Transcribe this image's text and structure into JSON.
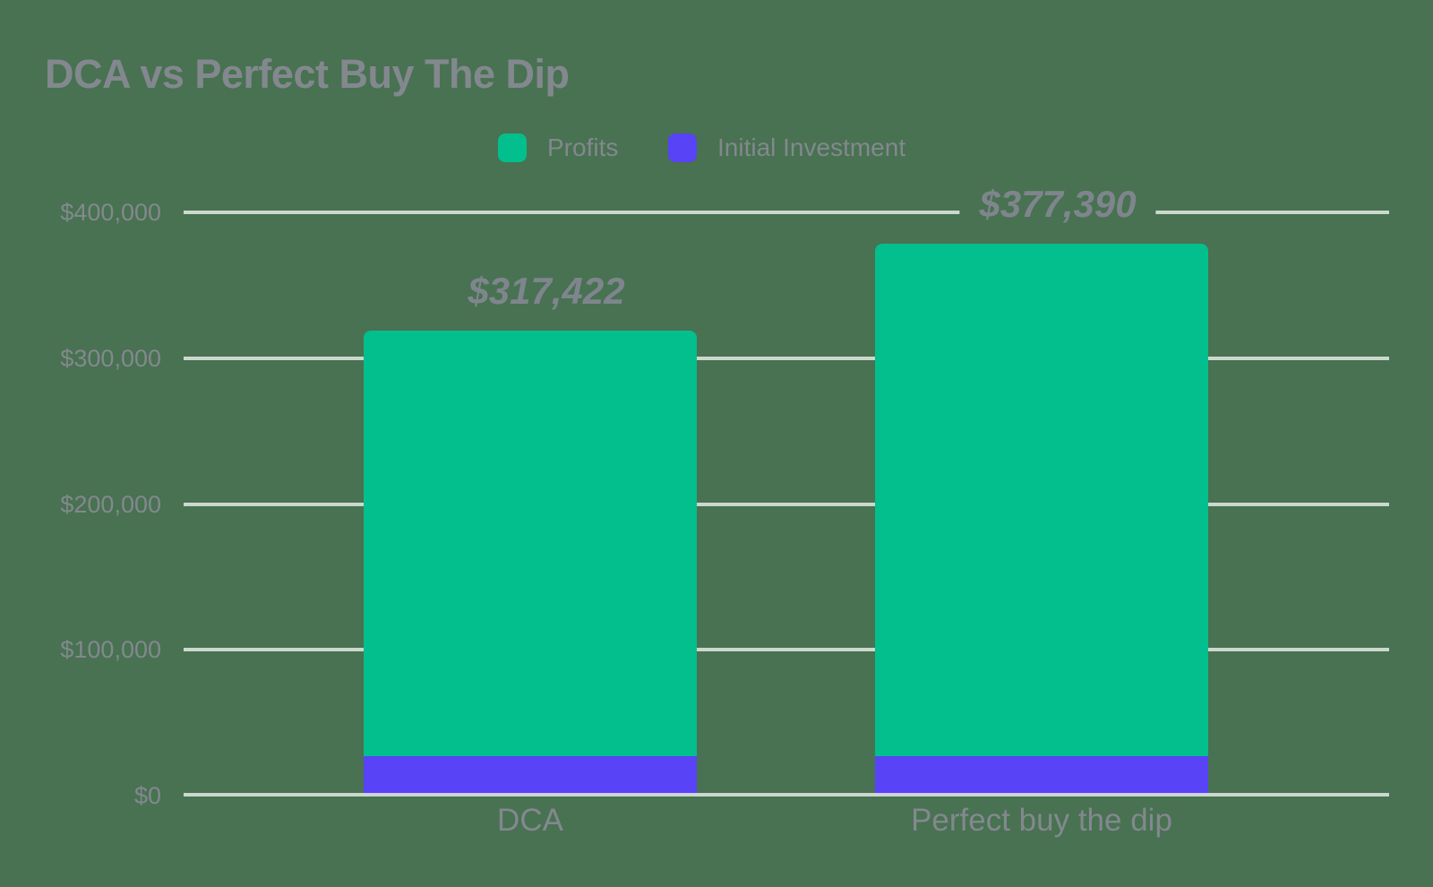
{
  "title": "DCA vs Perfect Buy The Dip",
  "colors": {
    "background": "#487251",
    "profits": "#02BF8D",
    "initial_investment": "#5843F7",
    "gridline": "rgba(255,255,255,0.72)",
    "text": "#83888F",
    "annotation_text": "#7F858D"
  },
  "legend": {
    "items": [
      {
        "label": "Profits",
        "color": "#02BF8D"
      },
      {
        "label": "Initial Investment",
        "color": "#5843F7"
      }
    ]
  },
  "chart_data": {
    "type": "bar",
    "stacked": true,
    "title": "DCA vs Perfect Buy The Dip",
    "categories": [
      "DCA",
      "Perfect buy the dip"
    ],
    "series": [
      {
        "name": "Initial Investment",
        "color": "#5843F7",
        "values": [
          26000,
          26000
        ]
      },
      {
        "name": "Profits",
        "color": "#02BF8D",
        "values": [
          291422,
          351390
        ]
      }
    ],
    "totals": [
      317422,
      377390
    ],
    "total_labels": [
      "$317,422",
      "$377,390"
    ],
    "xlabel": "",
    "ylabel": "",
    "ylim": [
      0,
      400000
    ],
    "yticks": [
      0,
      100000,
      200000,
      300000,
      400000
    ],
    "ytick_labels": [
      "$0",
      "$100,000",
      "$200,000",
      "$300,000",
      "$400,000"
    ],
    "grid": true,
    "legend_position": "top-center",
    "bar_label_style": "bold-italic-above-bar"
  }
}
